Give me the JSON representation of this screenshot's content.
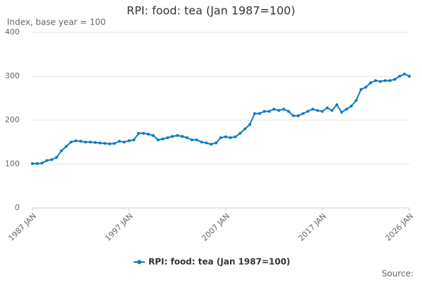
{
  "chart_data": {
    "type": "line",
    "title": "RPI: food: tea (Jan 1987=100)",
    "y_label": "Index, base year = 100",
    "source": "Source:",
    "x": [
      "1987-01",
      "1987-07",
      "1988-01",
      "1988-07",
      "1989-01",
      "1989-07",
      "1990-01",
      "1990-07",
      "1991-01",
      "1991-07",
      "1992-01",
      "1992-07",
      "1993-01",
      "1993-07",
      "1994-01",
      "1994-07",
      "1995-01",
      "1995-07",
      "1996-01",
      "1996-07",
      "1997-01",
      "1997-07",
      "1998-01",
      "1998-07",
      "1999-01",
      "1999-07",
      "2000-01",
      "2000-07",
      "2001-01",
      "2001-07",
      "2002-01",
      "2002-07",
      "2003-01",
      "2003-07",
      "2004-01",
      "2004-07",
      "2005-01",
      "2005-07",
      "2006-01",
      "2006-07",
      "2007-01",
      "2007-07",
      "2008-01",
      "2008-07",
      "2009-01",
      "2009-07",
      "2010-01",
      "2010-07",
      "2011-01",
      "2011-07",
      "2012-01",
      "2012-07",
      "2013-01",
      "2013-07",
      "2014-01",
      "2014-07",
      "2015-01",
      "2015-07",
      "2016-01",
      "2016-07",
      "2017-01",
      "2017-07",
      "2018-01",
      "2018-07",
      "2019-01",
      "2019-07",
      "2020-01",
      "2020-07",
      "2021-01",
      "2021-07",
      "2022-01",
      "2022-07",
      "2023-01",
      "2023-07",
      "2024-01",
      "2024-07",
      "2025-01",
      "2025-07",
      "2026-01"
    ],
    "series": [
      {
        "name": "RPI: food: tea (Jan 1987=100)",
        "color": "#0a7abf",
        "values": [
          101,
          101,
          102,
          108,
          110,
          115,
          130,
          140,
          150,
          153,
          152,
          150,
          150,
          149,
          148,
          147,
          146,
          147,
          152,
          150,
          153,
          155,
          170,
          170,
          168,
          165,
          155,
          157,
          160,
          163,
          165,
          163,
          160,
          155,
          155,
          150,
          148,
          145,
          148,
          160,
          162,
          160,
          162,
          170,
          180,
          190,
          215,
          215,
          220,
          220,
          225,
          222,
          225,
          220,
          210,
          210,
          215,
          220,
          225,
          222,
          220,
          228,
          222,
          235,
          218,
          225,
          232,
          245,
          270,
          275,
          285,
          290,
          288,
          290,
          290,
          293,
          300,
          305,
          300
        ]
      }
    ],
    "xlim": [
      "1987-01",
      "2026-01"
    ],
    "xticks": [
      {
        "value": "1987-01",
        "label": "1987 JAN"
      },
      {
        "value": "1997-01",
        "label": "1997 JAN"
      },
      {
        "value": "2007-01",
        "label": "2007 JAN"
      },
      {
        "value": "2017-01",
        "label": "2017 JAN"
      },
      {
        "value": "2026-01",
        "label": "2026 JAN"
      }
    ],
    "ylim": [
      0,
      400
    ],
    "yticks": [
      0,
      100,
      200,
      300,
      400
    ],
    "grid": true
  }
}
